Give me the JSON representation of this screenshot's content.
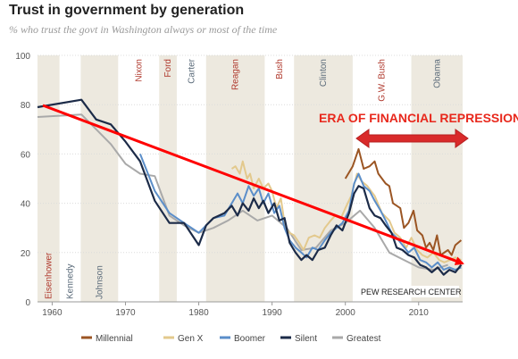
{
  "title": "Trust in government by generation",
  "subtitle": "% who trust the govt in Washington always or most of the time",
  "source": "PEW RESEARCH CENTER",
  "annotation": "ERA OF FINANCIAL REPRESSION",
  "colors": {
    "band": "#ede9df",
    "red_era": "#b03a2e",
    "blue_era": "#5b6b7a",
    "annotation": "#e8281c",
    "trend_arrow": "#ff0000"
  },
  "chart_data": {
    "type": "line",
    "xlim": [
      1958,
      2016
    ],
    "ylim": [
      0,
      100
    ],
    "x_ticks": [
      1960,
      1970,
      1980,
      1990,
      2000,
      2010
    ],
    "y_ticks": [
      0,
      20,
      40,
      60,
      80,
      100
    ],
    "presidencies": [
      {
        "name": "Eisenhower",
        "start": 1958,
        "end": 1961,
        "party": "R",
        "shaded": true
      },
      {
        "name": "Kennedy",
        "start": 1961,
        "end": 1963.9,
        "party": "D",
        "shaded": false
      },
      {
        "name": "Johnson",
        "start": 1963.9,
        "end": 1969,
        "party": "D",
        "shaded": true
      },
      {
        "name": "Nixon",
        "start": 1969,
        "end": 1974.6,
        "party": "R",
        "shaded": false
      },
      {
        "name": "Ford",
        "start": 1974.6,
        "end": 1977,
        "party": "R",
        "shaded": true
      },
      {
        "name": "Carter",
        "start": 1977,
        "end": 1981,
        "party": "D",
        "shaded": false
      },
      {
        "name": "Reagan",
        "start": 1981,
        "end": 1989,
        "party": "R",
        "shaded": true
      },
      {
        "name": "Bush",
        "start": 1989,
        "end": 1993,
        "party": "R",
        "shaded": false
      },
      {
        "name": "Clinton",
        "start": 1993,
        "end": 2001,
        "party": "D",
        "shaded": true
      },
      {
        "name": "G.W. Bush",
        "start": 2001,
        "end": 2009,
        "party": "R",
        "shaded": false
      },
      {
        "name": "Obama",
        "start": 2009,
        "end": 2016,
        "party": "D",
        "shaded": true
      }
    ],
    "series": [
      {
        "name": "Millennial",
        "color": "#9b5523",
        "points": [
          [
            2000,
            50
          ],
          [
            2001,
            55
          ],
          [
            2001.8,
            62
          ],
          [
            2002.5,
            54
          ],
          [
            2003.3,
            55
          ],
          [
            2004,
            57
          ],
          [
            2004.5,
            52
          ],
          [
            2005.5,
            48
          ],
          [
            2006,
            47
          ],
          [
            2006.5,
            40
          ],
          [
            2007.5,
            38
          ],
          [
            2008,
            30
          ],
          [
            2008.6,
            32
          ],
          [
            2009.3,
            37
          ],
          [
            2009.8,
            29
          ],
          [
            2010.5,
            27
          ],
          [
            2011,
            22
          ],
          [
            2011.5,
            24
          ],
          [
            2012,
            21
          ],
          [
            2012.5,
            27
          ],
          [
            2013,
            19
          ],
          [
            2014,
            21
          ],
          [
            2014.5,
            19
          ],
          [
            2015,
            23
          ],
          [
            2015.8,
            25
          ]
        ]
      },
      {
        "name": "Gen X",
        "color": "#e3c98d",
        "points": [
          [
            1984.5,
            54
          ],
          [
            1985,
            55
          ],
          [
            1985.6,
            52
          ],
          [
            1986,
            57
          ],
          [
            1986.6,
            50
          ],
          [
            1987,
            52
          ],
          [
            1987.5,
            46
          ],
          [
            1988.2,
            50
          ],
          [
            1988.8,
            46
          ],
          [
            1989.5,
            48
          ],
          [
            1990,
            45
          ],
          [
            1990.6,
            38
          ],
          [
            1991.2,
            42
          ],
          [
            1991.8,
            30
          ],
          [
            1992.4,
            28
          ],
          [
            1993,
            27
          ],
          [
            1993.7,
            24
          ],
          [
            1994.3,
            21
          ],
          [
            1995,
            26
          ],
          [
            1995.8,
            27
          ],
          [
            1996.5,
            26
          ],
          [
            1997.2,
            30
          ],
          [
            1998,
            33
          ],
          [
            1998.6,
            35
          ],
          [
            1999.4,
            34
          ],
          [
            2000,
            38
          ],
          [
            2000.8,
            43
          ],
          [
            2001.6,
            52
          ],
          [
            2002.2,
            49
          ],
          [
            2003,
            47
          ],
          [
            2004,
            43
          ],
          [
            2005,
            36
          ],
          [
            2006,
            33
          ],
          [
            2006.7,
            28
          ],
          [
            2007.5,
            26
          ],
          [
            2008.3,
            22
          ],
          [
            2009,
            26
          ],
          [
            2009.8,
            21
          ],
          [
            2010.5,
            19
          ],
          [
            2011.2,
            18
          ],
          [
            2012,
            20
          ],
          [
            2012.8,
            17
          ],
          [
            2013.5,
            16
          ],
          [
            2014.3,
            17
          ],
          [
            2015,
            18
          ],
          [
            2015.8,
            17
          ]
        ]
      },
      {
        "name": "Boomer",
        "color": "#5b8ec9",
        "points": [
          [
            1972,
            60
          ],
          [
            1974,
            45
          ],
          [
            1976,
            36
          ],
          [
            1978,
            32
          ],
          [
            1980,
            28
          ],
          [
            1982,
            34
          ],
          [
            1983.5,
            35
          ],
          [
            1984.5,
            40
          ],
          [
            1985.3,
            44
          ],
          [
            1986,
            40
          ],
          [
            1986.8,
            47
          ],
          [
            1987.5,
            43
          ],
          [
            1988.2,
            46
          ],
          [
            1988.8,
            40
          ],
          [
            1989.5,
            44
          ],
          [
            1990.3,
            36
          ],
          [
            1991,
            39
          ],
          [
            1991.7,
            30
          ],
          [
            1992.4,
            25
          ],
          [
            1993.2,
            22
          ],
          [
            1994,
            20
          ],
          [
            1994.7,
            18
          ],
          [
            1995.5,
            22
          ],
          [
            1996.3,
            21
          ],
          [
            1997.2,
            25
          ],
          [
            1998,
            28
          ],
          [
            1998.8,
            30
          ],
          [
            1999.6,
            32
          ],
          [
            2000.5,
            37
          ],
          [
            2001.2,
            48
          ],
          [
            2001.8,
            52
          ],
          [
            2002.5,
            47
          ],
          [
            2003.3,
            45
          ],
          [
            2004,
            41
          ],
          [
            2004.8,
            37
          ],
          [
            2005.5,
            33
          ],
          [
            2006.3,
            28
          ],
          [
            2007,
            26
          ],
          [
            2007.8,
            23
          ],
          [
            2008.6,
            20
          ],
          [
            2009.4,
            22
          ],
          [
            2010.2,
            17
          ],
          [
            2011,
            16
          ],
          [
            2011.8,
            14
          ],
          [
            2012.6,
            16
          ],
          [
            2013.4,
            13
          ],
          [
            2014.2,
            14
          ],
          [
            2015,
            13
          ],
          [
            2015.8,
            14
          ]
        ]
      },
      {
        "name": "Silent",
        "color": "#1c2b48",
        "points": [
          [
            1958,
            79
          ],
          [
            1964,
            82
          ],
          [
            1966,
            74
          ],
          [
            1968,
            72
          ],
          [
            1970,
            65
          ],
          [
            1972,
            57
          ],
          [
            1974,
            41
          ],
          [
            1976,
            32
          ],
          [
            1978,
            32
          ],
          [
            1980,
            23
          ],
          [
            1981,
            31
          ],
          [
            1982,
            34
          ],
          [
            1983.5,
            36
          ],
          [
            1984.5,
            39
          ],
          [
            1985.3,
            35
          ],
          [
            1986,
            40
          ],
          [
            1986.8,
            37
          ],
          [
            1987.5,
            42
          ],
          [
            1988.2,
            38
          ],
          [
            1988.8,
            41
          ],
          [
            1989.5,
            36
          ],
          [
            1990.3,
            40
          ],
          [
            1991,
            33
          ],
          [
            1991.7,
            34
          ],
          [
            1992.4,
            24
          ],
          [
            1993.2,
            20
          ],
          [
            1994,
            17
          ],
          [
            1994.7,
            19
          ],
          [
            1995.5,
            17
          ],
          [
            1996.3,
            21
          ],
          [
            1997.2,
            22
          ],
          [
            1998,
            27
          ],
          [
            1998.8,
            31
          ],
          [
            1999.6,
            29
          ],
          [
            2000.5,
            36
          ],
          [
            2001.2,
            44
          ],
          [
            2001.8,
            47
          ],
          [
            2002.5,
            46
          ],
          [
            2003.3,
            38
          ],
          [
            2004,
            35
          ],
          [
            2004.8,
            34
          ],
          [
            2005.5,
            31
          ],
          [
            2006.3,
            28
          ],
          [
            2007,
            22
          ],
          [
            2007.8,
            21
          ],
          [
            2008.6,
            19
          ],
          [
            2009.4,
            18
          ],
          [
            2010.2,
            15
          ],
          [
            2011,
            14
          ],
          [
            2011.8,
            12
          ],
          [
            2012.6,
            14
          ],
          [
            2013.4,
            11
          ],
          [
            2014.2,
            13
          ],
          [
            2015,
            12
          ],
          [
            2015.8,
            15
          ]
        ]
      },
      {
        "name": "Greatest",
        "color": "#a9a9a9",
        "points": [
          [
            1958,
            75
          ],
          [
            1964,
            76
          ],
          [
            1966,
            70
          ],
          [
            1968,
            64
          ],
          [
            1970,
            56
          ],
          [
            1972,
            52
          ],
          [
            1974,
            51
          ],
          [
            1976,
            35
          ],
          [
            1978,
            31
          ],
          [
            1980,
            28
          ],
          [
            1982,
            30
          ],
          [
            1984,
            33
          ],
          [
            1986,
            37
          ],
          [
            1988,
            33
          ],
          [
            1990,
            35
          ],
          [
            1992,
            30
          ],
          [
            1994,
            21
          ],
          [
            1996,
            22
          ],
          [
            1998,
            29
          ],
          [
            2000,
            32
          ],
          [
            2002,
            37
          ],
          [
            2004,
            30
          ],
          [
            2006,
            20
          ],
          [
            2008,
            17
          ],
          [
            2010,
            14
          ],
          [
            2012,
            13
          ],
          [
            2014,
            15
          ]
        ]
      }
    ]
  }
}
